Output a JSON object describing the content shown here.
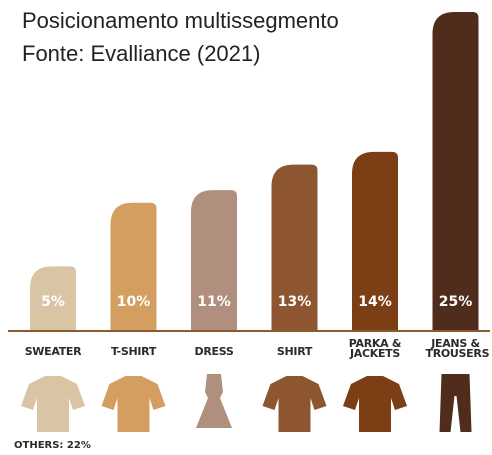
{
  "chart_data": {
    "type": "bar",
    "title": "Posicionamento multissegmento",
    "subtitle": "Fonte: Evalliance (2021)",
    "categories": [
      "SWEATER",
      "T-SHIRT",
      "DRESS",
      "SHIRT",
      "PARKA & JACKETS",
      "JEANS & TROUSERS"
    ],
    "values": [
      5,
      10,
      11,
      13,
      14,
      25
    ],
    "value_labels": [
      "5%",
      "10%",
      "11%",
      "13%",
      "14%",
      "25%"
    ],
    "colors": [
      "#d9c5a4",
      "#d39e60",
      "#b08f7e",
      "#8e5630",
      "#7b3e15",
      "#4f2c1b"
    ],
    "note": "OTHERS: 22%"
  }
}
